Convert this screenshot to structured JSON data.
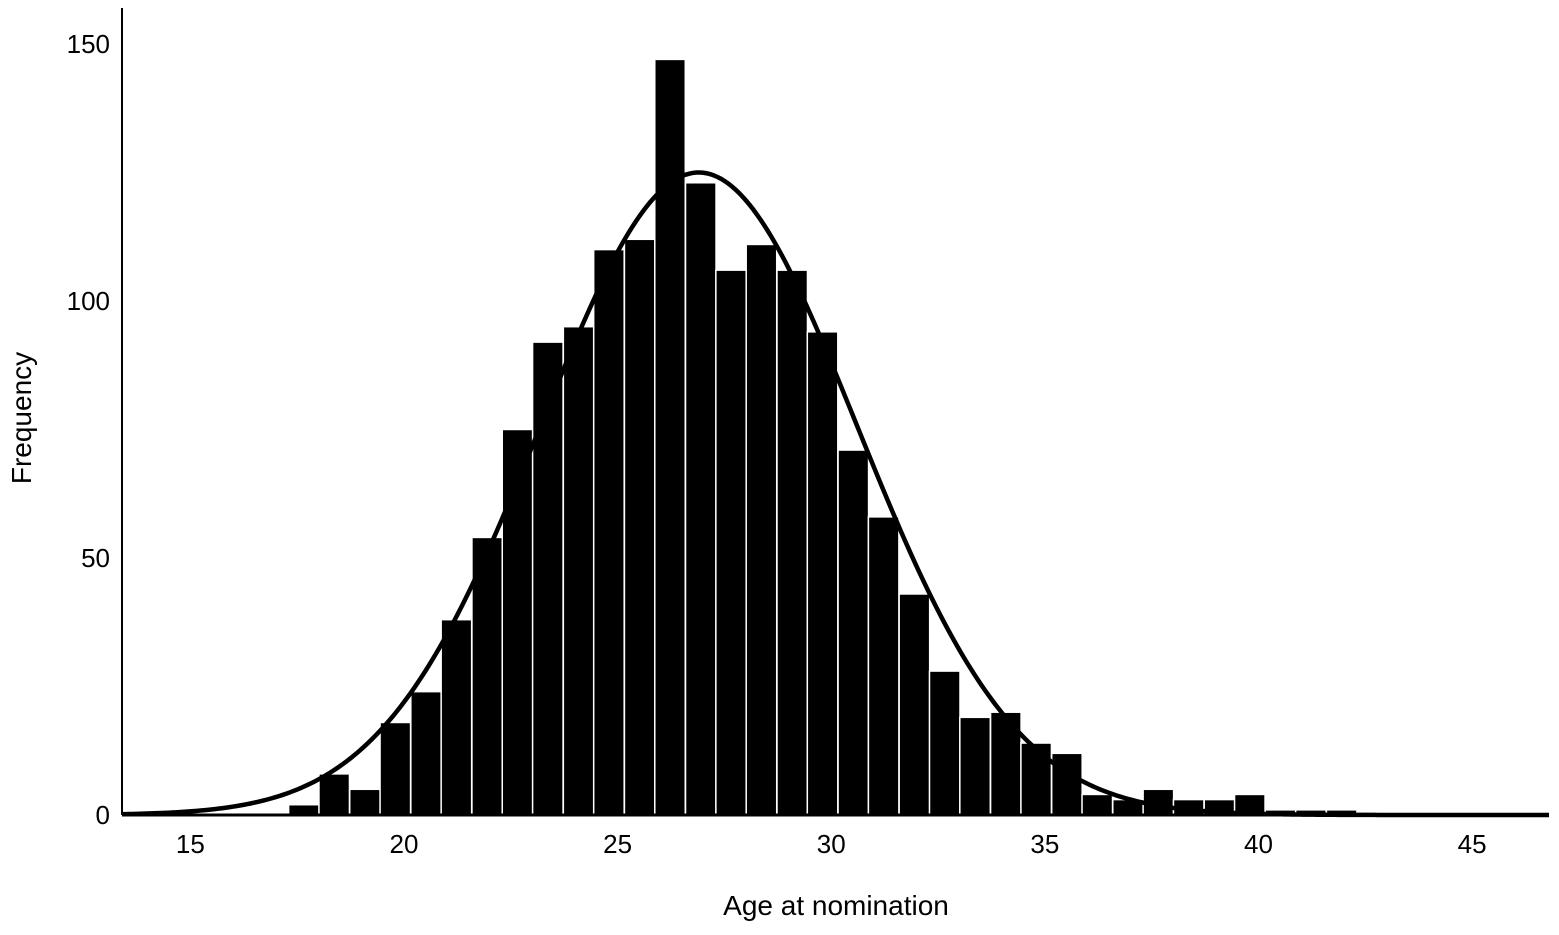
{
  "chart_data": {
    "type": "bar",
    "subtype": "histogram",
    "title": "",
    "xlabel": "Age at nomination",
    "ylabel": "Frequency",
    "xlim": [
      13.4,
      46.8
    ],
    "ylim": [
      0,
      157
    ],
    "xticks": [
      15,
      20,
      25,
      30,
      35,
      40,
      45
    ],
    "yticks": [
      0,
      50,
      100,
      150
    ],
    "xtick_labels": [
      "15",
      "20",
      "25",
      "30",
      "35",
      "40",
      "45"
    ],
    "ytick_labels": [
      "0",
      "50",
      "100",
      "150"
    ],
    "bin_width": 0.714,
    "bins": [
      {
        "start": 17.3,
        "value": 2
      },
      {
        "start": 18.01,
        "value": 8
      },
      {
        "start": 18.73,
        "value": 5
      },
      {
        "start": 19.44,
        "value": 18
      },
      {
        "start": 20.16,
        "value": 24
      },
      {
        "start": 20.87,
        "value": 38
      },
      {
        "start": 21.59,
        "value": 54
      },
      {
        "start": 22.3,
        "value": 75
      },
      {
        "start": 23.01,
        "value": 92
      },
      {
        "start": 23.73,
        "value": 95
      },
      {
        "start": 24.44,
        "value": 110
      },
      {
        "start": 25.16,
        "value": 112
      },
      {
        "start": 25.87,
        "value": 147
      },
      {
        "start": 26.59,
        "value": 123
      },
      {
        "start": 27.3,
        "value": 106
      },
      {
        "start": 28.01,
        "value": 111
      },
      {
        "start": 28.73,
        "value": 106
      },
      {
        "start": 29.44,
        "value": 94
      },
      {
        "start": 30.16,
        "value": 71
      },
      {
        "start": 30.87,
        "value": 58
      },
      {
        "start": 31.59,
        "value": 43
      },
      {
        "start": 32.3,
        "value": 28
      },
      {
        "start": 33.01,
        "value": 19
      },
      {
        "start": 33.73,
        "value": 20
      },
      {
        "start": 34.44,
        "value": 14
      },
      {
        "start": 35.16,
        "value": 12
      },
      {
        "start": 35.87,
        "value": 4
      },
      {
        "start": 36.59,
        "value": 3
      },
      {
        "start": 37.3,
        "value": 5
      },
      {
        "start": 38.01,
        "value": 3
      },
      {
        "start": 38.73,
        "value": 3
      },
      {
        "start": 39.44,
        "value": 4
      },
      {
        "start": 40.16,
        "value": 1
      },
      {
        "start": 40.87,
        "value": 1
      },
      {
        "start": 41.59,
        "value": 1
      }
    ],
    "normal_curve": {
      "mean": 26.9,
      "sd": 3.7,
      "peak": 125
    },
    "grid": false,
    "legend": "none",
    "colors": {
      "bar_fill": "#000000",
      "bar_edge": "#ffffff",
      "curve": "#000000",
      "axis": "#000000",
      "background": "#ffffff"
    }
  }
}
